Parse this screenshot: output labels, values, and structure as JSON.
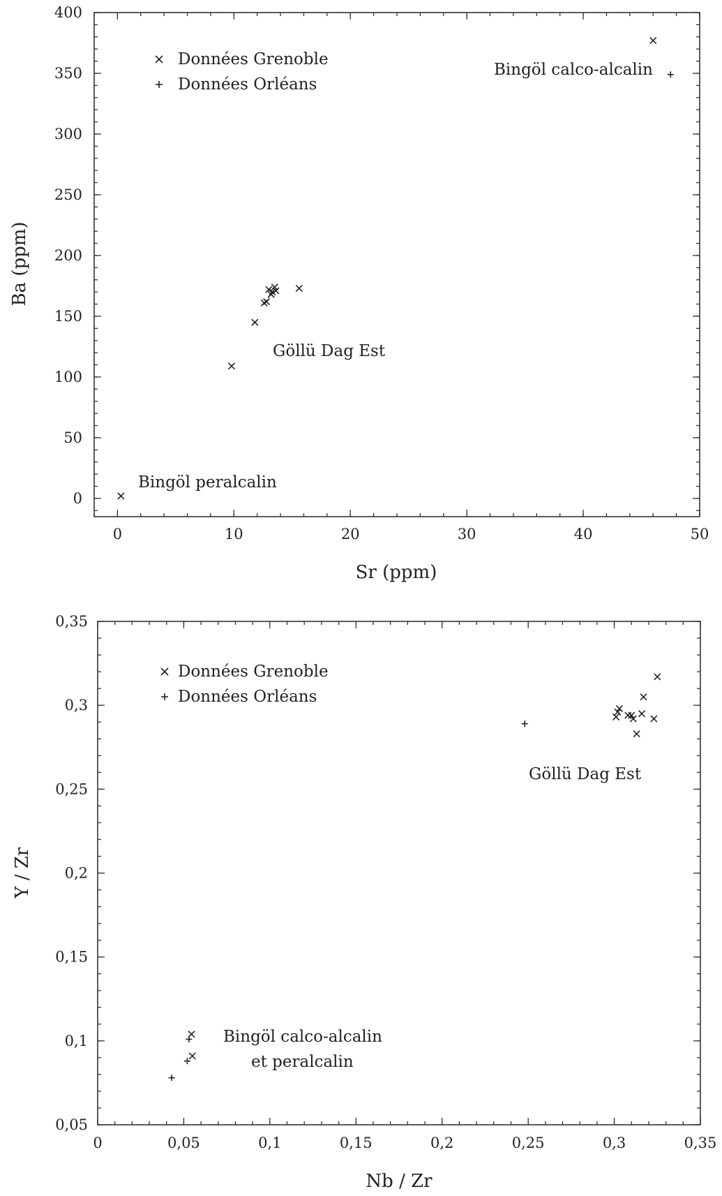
{
  "chart_data": [
    {
      "type": "scatter",
      "xlabel": "Sr (ppm)",
      "ylabel": "Ba (ppm)",
      "xlim": [
        -2,
        50
      ],
      "ylim": [
        -15,
        400
      ],
      "x_ticks": [
        0,
        10,
        20,
        30,
        40,
        50
      ],
      "x_tick_labels": [
        "0",
        "10",
        "20",
        "30",
        "40",
        "50"
      ],
      "y_ticks": [
        0,
        50,
        100,
        150,
        200,
        250,
        300,
        350,
        400
      ],
      "y_tick_labels": [
        "0",
        "50",
        "100",
        "150",
        "200",
        "250",
        "300",
        "350",
        "400"
      ],
      "grid": false,
      "legend_position": "top-left",
      "series": [
        {
          "name": "Données Grenoble",
          "marker": "x",
          "points": [
            {
              "x": 0.3,
              "y": 2
            },
            {
              "x": 9.8,
              "y": 109
            },
            {
              "x": 11.8,
              "y": 145
            },
            {
              "x": 12.6,
              "y": 161
            },
            {
              "x": 12.8,
              "y": 162
            },
            {
              "x": 13.0,
              "y": 172
            },
            {
              "x": 13.2,
              "y": 168
            },
            {
              "x": 13.3,
              "y": 170
            },
            {
              "x": 13.5,
              "y": 174
            },
            {
              "x": 13.6,
              "y": 171
            },
            {
              "x": 15.6,
              "y": 173
            },
            {
              "x": 46.0,
              "y": 377
            }
          ]
        },
        {
          "name": "Données Orléans",
          "marker": "+",
          "points": [
            {
              "x": 47.5,
              "y": 349
            }
          ]
        }
      ],
      "annotations": [
        {
          "text": "Bingöl calco-alcalin"
        },
        {
          "text": "Göllü Dag Est"
        },
        {
          "text": "Bingöl peralcalin"
        }
      ]
    },
    {
      "type": "scatter",
      "xlabel": "Nb / Zr",
      "ylabel": "Y / Zr",
      "xlim": [
        0,
        0.35
      ],
      "ylim": [
        0.05,
        0.35
      ],
      "x_ticks": [
        0,
        0.05,
        0.1,
        0.15,
        0.2,
        0.25,
        0.3,
        0.35
      ],
      "x_tick_labels": [
        "0",
        "0,05",
        "0,1",
        "0,15",
        "0,2",
        "0,25",
        "0,3",
        "0,35"
      ],
      "y_ticks": [
        0.05,
        0.1,
        0.15,
        0.2,
        0.25,
        0.3,
        0.35
      ],
      "y_tick_labels": [
        "0,05",
        "0,1",
        "0,15",
        "0,2",
        "0,25",
        "0,3",
        "0,35"
      ],
      "grid": false,
      "legend_position": "top-left",
      "series": [
        {
          "name": "Données Grenoble",
          "marker": "x",
          "points": [
            {
              "x": 0.0545,
              "y": 0.104
            },
            {
              "x": 0.055,
              "y": 0.091
            },
            {
              "x": 0.301,
              "y": 0.293
            },
            {
              "x": 0.302,
              "y": 0.296
            },
            {
              "x": 0.303,
              "y": 0.298
            },
            {
              "x": 0.308,
              "y": 0.294
            },
            {
              "x": 0.31,
              "y": 0.294
            },
            {
              "x": 0.311,
              "y": 0.292
            },
            {
              "x": 0.313,
              "y": 0.283
            },
            {
              "x": 0.316,
              "y": 0.295
            },
            {
              "x": 0.317,
              "y": 0.305
            },
            {
              "x": 0.323,
              "y": 0.292
            },
            {
              "x": 0.325,
              "y": 0.317
            }
          ]
        },
        {
          "name": "Données Orléans",
          "marker": "+",
          "points": [
            {
              "x": 0.043,
              "y": 0.078
            },
            {
              "x": 0.052,
              "y": 0.088
            },
            {
              "x": 0.053,
              "y": 0.101
            },
            {
              "x": 0.248,
              "y": 0.289
            }
          ]
        }
      ],
      "annotations": [
        {
          "text": "Göllü Dag Est"
        },
        {
          "text": "Bingöl calco-alcalin"
        },
        {
          "text": "et peralcalin"
        }
      ]
    }
  ]
}
